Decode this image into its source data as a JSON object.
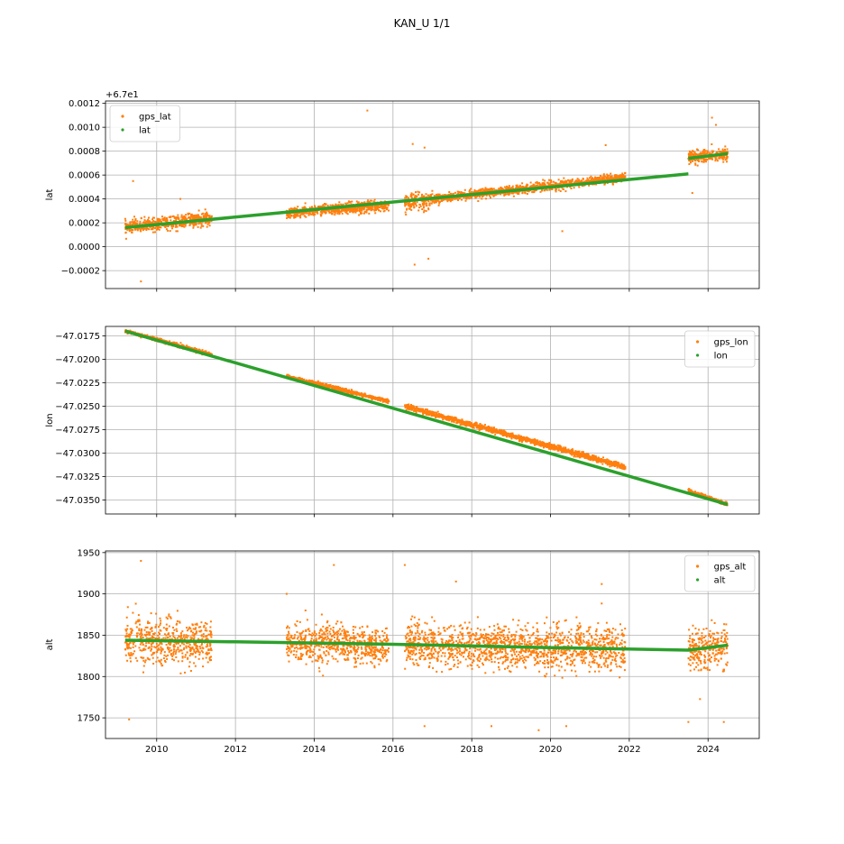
{
  "figure": {
    "title": "KAN_U 1/1"
  },
  "colors": {
    "gps": "#ff7f0e",
    "model": "#2ca02c",
    "grid": "#b0b0b0"
  },
  "chart_data": [
    {
      "type": "scatter",
      "ylabel": "lat",
      "offset_label": "+6.7e1",
      "xlim": [
        2008.7,
        2025.3
      ],
      "ylim": [
        -0.00035,
        0.00122
      ],
      "xticks": [
        2010,
        2012,
        2014,
        2016,
        2018,
        2020,
        2022,
        2024
      ],
      "xtick_labels_visible": false,
      "yticks": [
        -0.0002,
        0.0,
        0.0002,
        0.0004,
        0.0006,
        0.0008,
        0.001,
        0.0012
      ],
      "ytick_labels": [
        "−0.0002",
        "0.0000",
        "0.0002",
        "0.0004",
        "0.0006",
        "0.0008",
        "0.0010",
        "0.0012"
      ],
      "grid": true,
      "legend": {
        "position": "upper-left",
        "entries": [
          "gps_lat",
          "lat"
        ]
      },
      "series": [
        {
          "name": "gps_lat",
          "role": "gps",
          "segments": [
            {
              "x": [
                2009.2,
                2011.4
              ],
              "y": [
                0.00016,
                0.00024
              ],
              "spread": 6e-05
            },
            {
              "x": [
                2013.3,
                2015.9
              ],
              "y": [
                0.00028,
                0.00035
              ],
              "spread": 5e-05
            },
            {
              "x": [
                2016.3,
                2017.0
              ],
              "y": [
                0.00037,
                0.00039
              ],
              "spread": 8e-05
            },
            {
              "x": [
                2017.0,
                2021.9
              ],
              "y": [
                0.0004,
                0.00058
              ],
              "spread": 4e-05
            },
            {
              "x": [
                2023.5,
                2024.5
              ],
              "y": [
                0.00075,
                0.00077
              ],
              "spread": 6e-05
            }
          ],
          "outliers": [
            [
              2015.35,
              0.00114
            ],
            [
              2009.6,
              -0.00029
            ],
            [
              2016.5,
              0.00086
            ],
            [
              2016.8,
              0.00083
            ],
            [
              2009.4,
              0.00055
            ],
            [
              2016.55,
              -0.00015
            ],
            [
              2016.9,
              -0.0001
            ],
            [
              2024.1,
              0.00108
            ],
            [
              2024.2,
              0.00102
            ],
            [
              2021.4,
              0.00085
            ],
            [
              2010.6,
              0.0004
            ],
            [
              2020.3,
              0.00013
            ],
            [
              2023.6,
              0.00045
            ]
          ]
        },
        {
          "name": "lat",
          "role": "model",
          "line": [
            [
              2009.2,
              0.00016
            ],
            [
              2023.5,
              0.00061
            ]
          ],
          "line2": [
            [
              2023.5,
              0.00074
            ],
            [
              2024.5,
              0.00078
            ]
          ]
        }
      ]
    },
    {
      "type": "scatter",
      "ylabel": "lon",
      "xlim": [
        2008.7,
        2025.3
      ],
      "ylim": [
        -47.0365,
        -47.0165
      ],
      "xticks": [
        2010,
        2012,
        2014,
        2016,
        2018,
        2020,
        2022,
        2024
      ],
      "xtick_labels_visible": false,
      "yticks": [
        -47.0175,
        -47.02,
        -47.0225,
        -47.025,
        -47.0275,
        -47.03,
        -47.0325,
        -47.035
      ],
      "ytick_labels": [
        "−47.0175",
        "−47.0200",
        "−47.0225",
        "−47.0250",
        "−47.0275",
        "−47.0300",
        "−47.0325",
        "−47.0350"
      ],
      "grid": true,
      "legend": {
        "position": "upper-right",
        "entries": [
          "gps_lon",
          "lon"
        ]
      },
      "series": [
        {
          "name": "gps_lon",
          "role": "gps",
          "segments": [
            {
              "x": [
                2009.2,
                2011.4
              ],
              "y": [
                -47.017,
                -47.0195
              ],
              "spread": 0.0002
            },
            {
              "x": [
                2013.3,
                2015.9
              ],
              "y": [
                -47.0218,
                -47.0245
              ],
              "spread": 0.0002
            },
            {
              "x": [
                2016.3,
                2021.9
              ],
              "y": [
                -47.025,
                -47.0315
              ],
              "spread": 0.0003
            },
            {
              "x": [
                2023.5,
                2024.5
              ],
              "y": [
                -47.034,
                -47.0355
              ],
              "spread": 0.0002
            }
          ],
          "outliers": []
        },
        {
          "name": "lon",
          "role": "model",
          "line": [
            [
              2009.2,
              -47.017
            ],
            [
              2024.5,
              -47.0355
            ]
          ]
        }
      ]
    },
    {
      "type": "scatter",
      "ylabel": "alt",
      "xlim": [
        2008.7,
        2025.3
      ],
      "ylim": [
        1725,
        1952
      ],
      "xticks": [
        2010,
        2012,
        2014,
        2016,
        2018,
        2020,
        2022,
        2024
      ],
      "xtick_labels": [
        "2010",
        "2012",
        "2014",
        "2016",
        "2018",
        "2020",
        "2022",
        "2024"
      ],
      "yticks": [
        1750,
        1800,
        1850,
        1900,
        1950
      ],
      "ytick_labels": [
        "1750",
        "1800",
        "1850",
        "1900",
        "1950"
      ],
      "grid": true,
      "legend": {
        "position": "upper-right",
        "entries": [
          "gps_alt",
          "alt"
        ]
      },
      "series": [
        {
          "name": "gps_alt",
          "role": "gps",
          "segments": [
            {
              "x": [
                2009.2,
                2011.4
              ],
              "y": [
                1844,
                1840
              ],
              "spread": 30
            },
            {
              "x": [
                2013.3,
                2015.9
              ],
              "y": [
                1840,
                1838
              ],
              "spread": 25
            },
            {
              "x": [
                2016.3,
                2021.9
              ],
              "y": [
                1838,
                1834
              ],
              "spread": 28
            },
            {
              "x": [
                2023.5,
                2024.5
              ],
              "y": [
                1832,
                1836
              ],
              "spread": 28
            }
          ],
          "outliers": [
            [
              2009.6,
              1940
            ],
            [
              2009.3,
              1748
            ],
            [
              2014.5,
              1935
            ],
            [
              2016.3,
              1935
            ],
            [
              2017.6,
              1915
            ],
            [
              2019.7,
              1735
            ],
            [
              2016.8,
              1740
            ],
            [
              2013.3,
              1900
            ],
            [
              2021.3,
              1912
            ],
            [
              2024.4,
              1745
            ],
            [
              2023.5,
              1745
            ],
            [
              2020.4,
              1740
            ],
            [
              2018.5,
              1740
            ]
          ]
        },
        {
          "name": "alt",
          "role": "model",
          "line": [
            [
              2009.2,
              1844
            ],
            [
              2012.0,
              1842
            ],
            [
              2016.0,
              1839
            ],
            [
              2020.0,
              1835
            ],
            [
              2023.5,
              1832
            ],
            [
              2024.5,
              1838
            ]
          ]
        }
      ]
    }
  ]
}
